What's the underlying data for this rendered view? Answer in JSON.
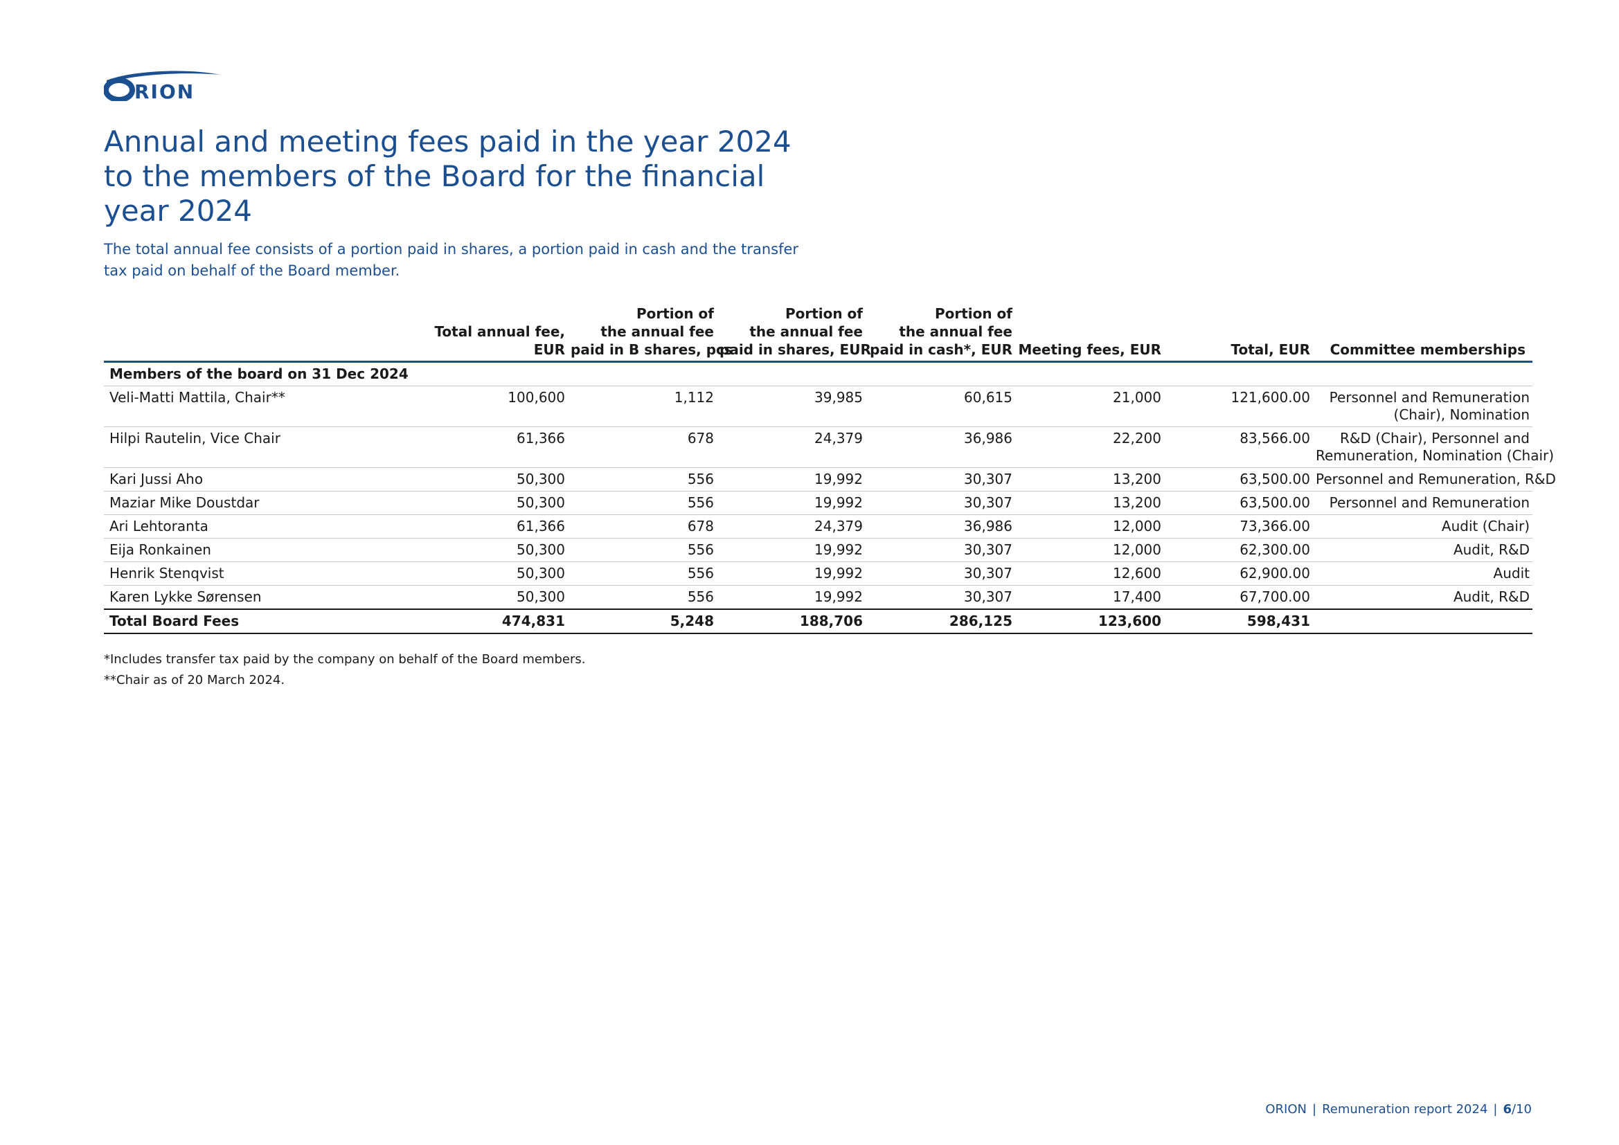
{
  "brand": {
    "logo_text": "ORION",
    "color": "#1b4f8f"
  },
  "title_lines": [
    "Annual and meeting fees paid in the year 2024",
    "to the members of the Board for the financial",
    "year 2024"
  ],
  "subtitle_lines": [
    "The total annual fee consists of a portion paid in shares, a portion paid in cash and the transfer",
    "tax paid on behalf of the Board member."
  ],
  "table": {
    "headers": [
      [
        ""
      ],
      [
        "Total annual fee,",
        "EUR"
      ],
      [
        "Portion of",
        "the annual fee",
        "paid in B shares, pcs"
      ],
      [
        "Portion of",
        "the annual fee",
        "paid in shares, EUR"
      ],
      [
        "Portion of",
        "the annual fee",
        "paid in cash*, EUR"
      ],
      [
        "Meeting fees, EUR"
      ],
      [
        "Total, EUR"
      ],
      [
        "Committee memberships"
      ]
    ],
    "section_label": "Members of the board on 31 Dec 2024",
    "rows": [
      {
        "name": "Veli-Matti Mattila, Chair**",
        "annual_fee": "100,600",
        "b_shares": "1,112",
        "shares_eur": "39,985",
        "cash_eur": "60,615",
        "meeting_fees": "21,000",
        "total": "121,600.00",
        "committees": [
          "Personnel and Remuneration",
          "(Chair), Nomination"
        ]
      },
      {
        "name": "Hilpi Rautelin, Vice Chair",
        "annual_fee": "61,366",
        "b_shares": "678",
        "shares_eur": "24,379",
        "cash_eur": "36,986",
        "meeting_fees": "22,200",
        "total": "83,566.00",
        "committees": [
          "R&D (Chair), Personnel and",
          "Remuneration, Nomination (Chair)"
        ]
      },
      {
        "name": "Kari Jussi Aho",
        "annual_fee": "50,300",
        "b_shares": "556",
        "shares_eur": "19,992",
        "cash_eur": "30,307",
        "meeting_fees": "13,200",
        "total": "63,500.00",
        "committees": [
          "Personnel and Remuneration, R&D"
        ]
      },
      {
        "name": "Maziar Mike Doustdar",
        "annual_fee": "50,300",
        "b_shares": "556",
        "shares_eur": "19,992",
        "cash_eur": "30,307",
        "meeting_fees": "13,200",
        "total": "63,500.00",
        "committees": [
          "Personnel and Remuneration"
        ]
      },
      {
        "name": "Ari Lehtoranta",
        "annual_fee": "61,366",
        "b_shares": "678",
        "shares_eur": "24,379",
        "cash_eur": "36,986",
        "meeting_fees": "12,000",
        "total": "73,366.00",
        "committees": [
          "Audit (Chair)"
        ]
      },
      {
        "name": "Eija Ronkainen",
        "annual_fee": "50,300",
        "b_shares": "556",
        "shares_eur": "19,992",
        "cash_eur": "30,307",
        "meeting_fees": "12,000",
        "total": "62,300.00",
        "committees": [
          "Audit, R&D"
        ]
      },
      {
        "name": "Henrik Stenqvist",
        "annual_fee": "50,300",
        "b_shares": "556",
        "shares_eur": "19,992",
        "cash_eur": "30,307",
        "meeting_fees": "12,600",
        "total": "62,900.00",
        "committees": [
          "Audit"
        ]
      },
      {
        "name": "Karen Lykke Sørensen",
        "annual_fee": "50,300",
        "b_shares": "556",
        "shares_eur": "19,992",
        "cash_eur": "30,307",
        "meeting_fees": "17,400",
        "total": "67,700.00",
        "committees": [
          "Audit, R&D"
        ]
      }
    ],
    "total_row": {
      "label": "Total Board Fees",
      "annual_fee": "474,831",
      "b_shares": "5,248",
      "shares_eur": "188,706",
      "cash_eur": "286,125",
      "meeting_fees": "123,600",
      "total": "598,431",
      "committees": ""
    }
  },
  "footnotes": [
    "*Includes transfer tax paid by the company on behalf of the Board members.",
    "**Chair as of 20 March 2024."
  ],
  "footer": {
    "company": "ORION",
    "separator": "|",
    "report": "Remuneration report 2024",
    "page_current": "6",
    "page_total": "/10"
  }
}
